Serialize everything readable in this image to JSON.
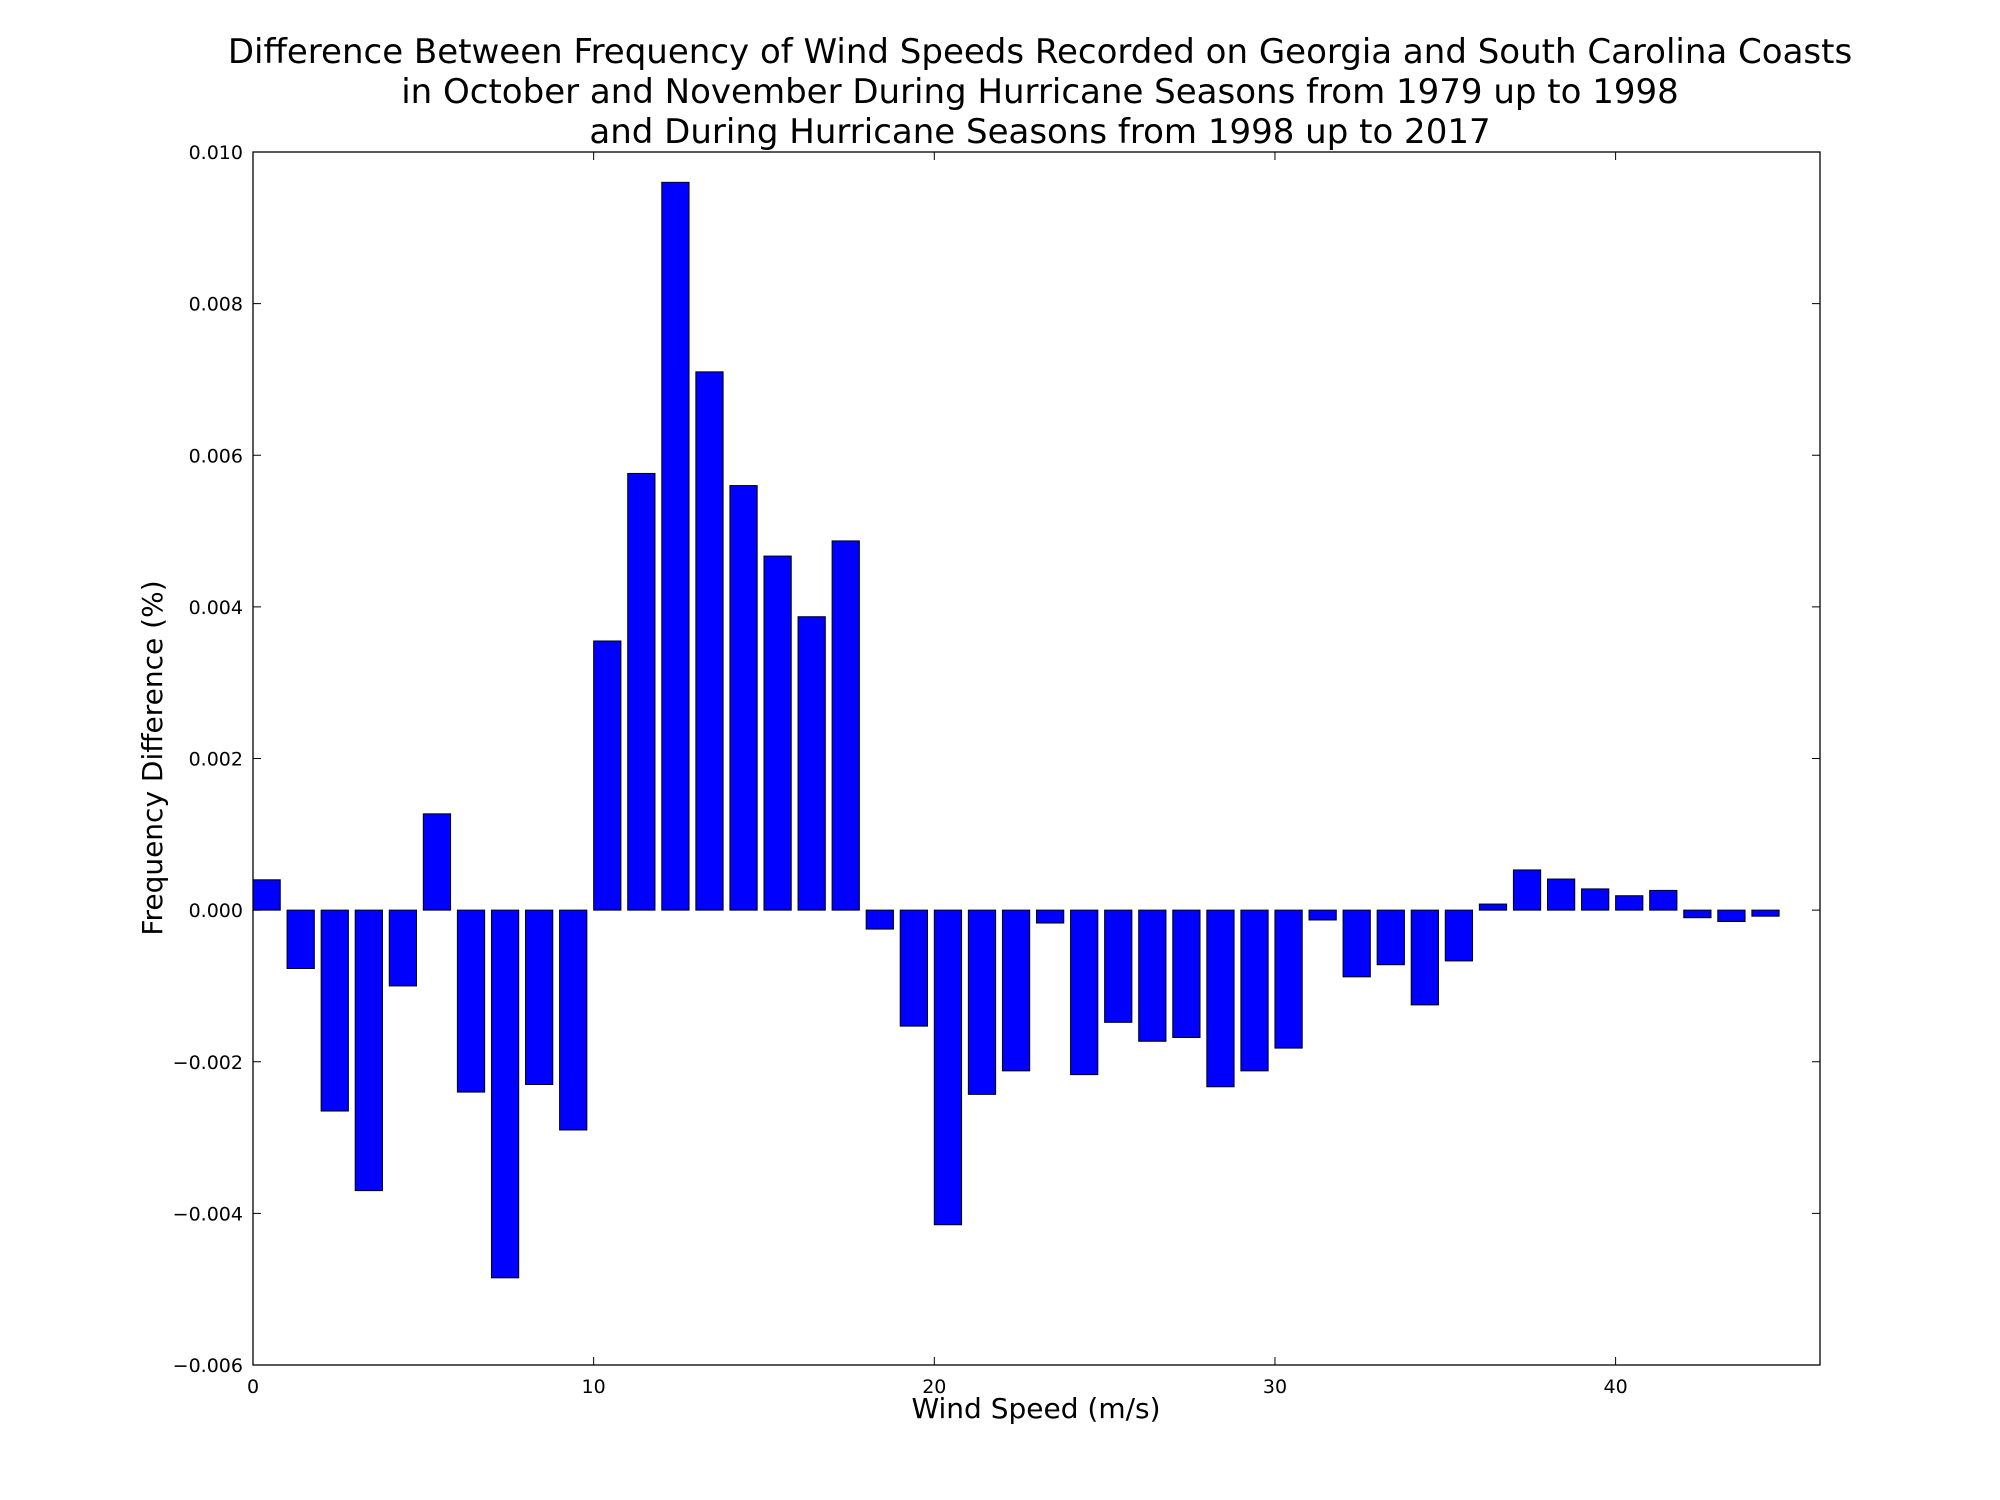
{
  "chart_data": {
    "type": "bar",
    "title_lines": [
      "Difference Between Frequency of Wind Speeds Recorded on Georgia and South Carolina Coasts",
      "in October and November During Hurricane Seasons from 1979 up to 1998",
      "and During Hurricane Seasons from 1998 up to 2017"
    ],
    "xlabel": "Wind Speed (m/s)",
    "ylabel": "Frequency Difference (%)",
    "xlim": [
      0,
      46
    ],
    "ylim": [
      -0.006,
      0.01
    ],
    "x_ticks": [
      0,
      10,
      20,
      30,
      40
    ],
    "x_tick_labels": [
      "0",
      "10",
      "20",
      "30",
      "40"
    ],
    "y_ticks": [
      -0.006,
      -0.004,
      -0.002,
      0.0,
      0.002,
      0.004,
      0.006,
      0.008,
      0.01
    ],
    "y_tick_labels": [
      "−0.006",
      "−0.004",
      "−0.002",
      "0.000",
      "0.002",
      "0.004",
      "0.006",
      "0.008",
      "0.010"
    ],
    "bar_width": 0.8,
    "grid": false,
    "bar_color": "#0000ff",
    "x": [
      0,
      1,
      2,
      3,
      4,
      5,
      6,
      7,
      8,
      9,
      10,
      11,
      12,
      13,
      14,
      15,
      16,
      17,
      18,
      19,
      20,
      21,
      22,
      23,
      24,
      25,
      26,
      27,
      28,
      29,
      30,
      31,
      32,
      33,
      34,
      35,
      36,
      37,
      38,
      39,
      40,
      41,
      42,
      43,
      44
    ],
    "values": [
      0.0004,
      -0.00077,
      -0.00265,
      -0.0037,
      -0.001,
      0.00127,
      -0.0024,
      -0.00485,
      -0.0023,
      -0.0029,
      0.00355,
      0.00576,
      0.0096,
      0.0071,
      0.0056,
      0.00467,
      0.00387,
      0.00487,
      -0.00025,
      -0.00153,
      -0.00415,
      -0.00243,
      -0.00212,
      -0.00017,
      -0.00217,
      -0.00148,
      -0.00173,
      -0.00168,
      -0.00233,
      -0.00212,
      -0.00182,
      -0.00013,
      -0.00088,
      -0.00072,
      -0.00125,
      -0.00067,
      8e-05,
      0.00053,
      0.00041,
      0.00028,
      0.00019,
      0.00026,
      -0.0001,
      -0.00015,
      -8e-05
    ]
  }
}
